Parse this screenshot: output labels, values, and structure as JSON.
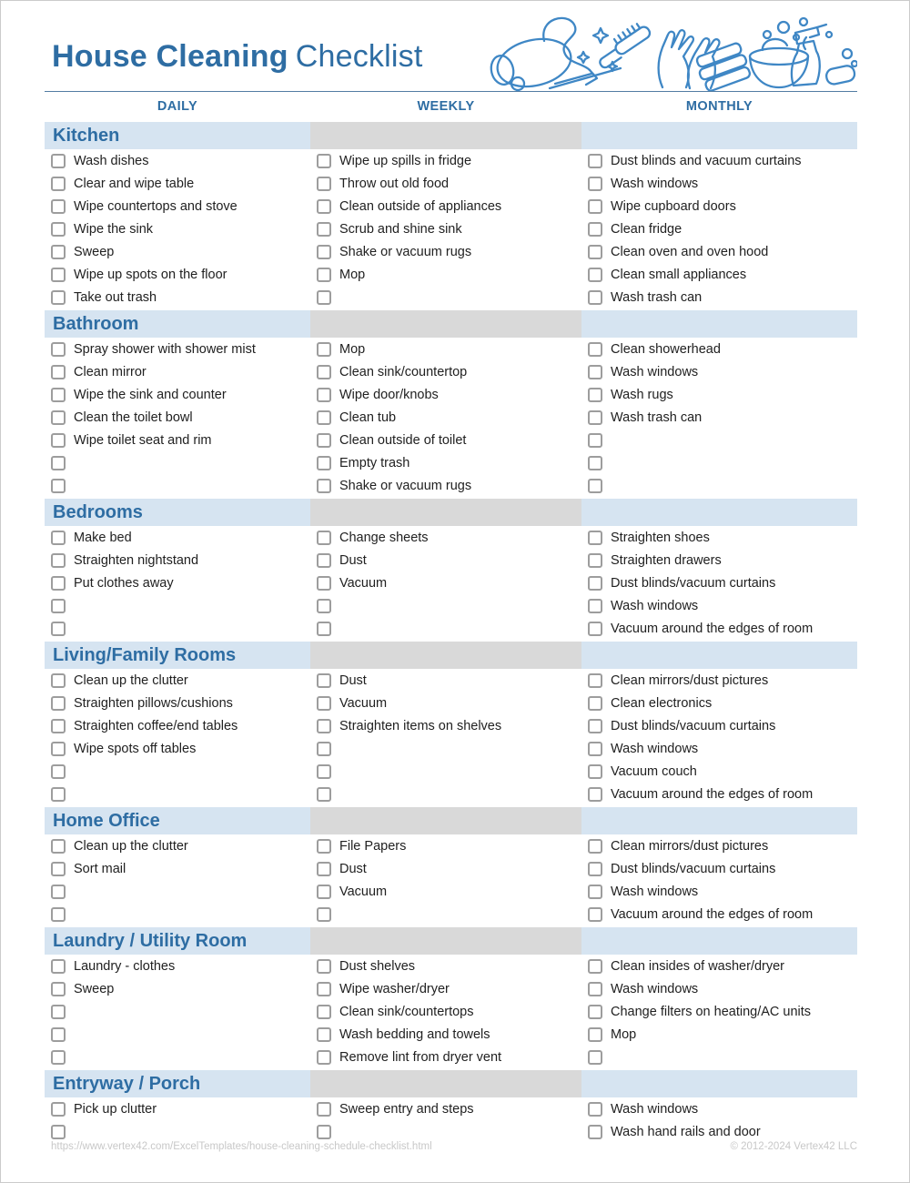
{
  "page": {
    "title_bold": "House Cleaning",
    "title_regular": "Checklist",
    "footer_url": "https://www.vertex42.com/ExcelTemplates/house-cleaning-schedule-checklist.html",
    "footer_copyright": "© 2012-2024 Vertex42 LLC"
  },
  "columns": [
    "DAILY",
    "WEEKLY",
    "MONTHLY"
  ],
  "sections": [
    {
      "name": "Kitchen",
      "daily": [
        "Wash dishes",
        "Clear and wipe table",
        "Wipe countertops and stove",
        "Wipe the sink",
        "Sweep",
        "Wipe up spots on the floor",
        "Take out trash"
      ],
      "weekly": [
        "Wipe up spills in fridge",
        "Throw out old food",
        "Clean outside of appliances",
        "Scrub and shine sink",
        "Shake or vacuum rugs",
        "Mop",
        ""
      ],
      "monthly": [
        "Dust blinds and vacuum curtains",
        "Wash windows",
        "Wipe cupboard doors",
        "Clean fridge",
        "Clean oven and oven hood",
        "Clean small appliances",
        "Wash trash can"
      ]
    },
    {
      "name": "Bathroom",
      "daily": [
        "Spray shower with shower mist",
        "Clean mirror",
        "Wipe the sink and counter",
        "Clean the toilet bowl",
        "Wipe toilet seat and rim",
        "",
        ""
      ],
      "weekly": [
        "Mop",
        "Clean sink/countertop",
        "Wipe door/knobs",
        "Clean tub",
        "Clean outside of toilet",
        "Empty trash",
        "Shake or vacuum rugs"
      ],
      "monthly": [
        "Clean showerhead",
        "Wash windows",
        "Wash rugs",
        "Wash trash can",
        "",
        "",
        ""
      ]
    },
    {
      "name": "Bedrooms",
      "daily": [
        "Make bed",
        "Straighten nightstand",
        "Put clothes away",
        "",
        ""
      ],
      "weekly": [
        "Change sheets",
        "Dust",
        "Vacuum",
        "",
        ""
      ],
      "monthly": [
        "Straighten shoes",
        "Straighten drawers",
        "Dust blinds/vacuum curtains",
        "Wash windows",
        "Vacuum around the edges of room"
      ]
    },
    {
      "name": "Living/Family Rooms",
      "daily": [
        "Clean up the clutter",
        "Straighten pillows/cushions",
        "Straighten coffee/end tables",
        "Wipe spots off tables",
        "",
        ""
      ],
      "weekly": [
        "Dust",
        "Vacuum",
        "Straighten items on shelves",
        "",
        "",
        ""
      ],
      "monthly": [
        "Clean mirrors/dust pictures",
        "Clean electronics",
        "Dust blinds/vacuum curtains",
        "Wash windows",
        "Vacuum couch",
        "Vacuum around the edges of room"
      ]
    },
    {
      "name": "Home Office",
      "daily": [
        "Clean up the clutter",
        "Sort mail",
        "",
        ""
      ],
      "weekly": [
        "File Papers",
        "Dust",
        "Vacuum",
        ""
      ],
      "monthly": [
        "Clean mirrors/dust pictures",
        "Dust blinds/vacuum curtains",
        "Wash windows",
        "Vacuum around the edges of room"
      ]
    },
    {
      "name": "Laundry / Utility Room",
      "daily": [
        "Laundry - clothes",
        "Sweep",
        "",
        "",
        ""
      ],
      "weekly": [
        "Dust shelves",
        "Wipe washer/dryer",
        "Clean sink/countertops",
        "Wash bedding and towels",
        "Remove lint from dryer vent"
      ],
      "monthly": [
        "Clean insides of washer/dryer",
        "Wash windows",
        "Change filters on heating/AC units",
        "Mop",
        ""
      ]
    },
    {
      "name": "Entryway / Porch",
      "daily": [
        "Pick up clutter",
        ""
      ],
      "weekly": [
        "Sweep entry and steps",
        ""
      ],
      "monthly": [
        "Wash windows",
        "Wash hand rails and door"
      ]
    }
  ],
  "colors": {
    "accent_blue": "#2e6da3",
    "rule_blue": "#527ca3",
    "band_blue": "#d6e4f1",
    "band_gray": "#d9d9d9",
    "checkbox_border": "#9d9d9d",
    "footer_gray": "#c8c8c8",
    "illustration_blue": "#3f87c5"
  }
}
